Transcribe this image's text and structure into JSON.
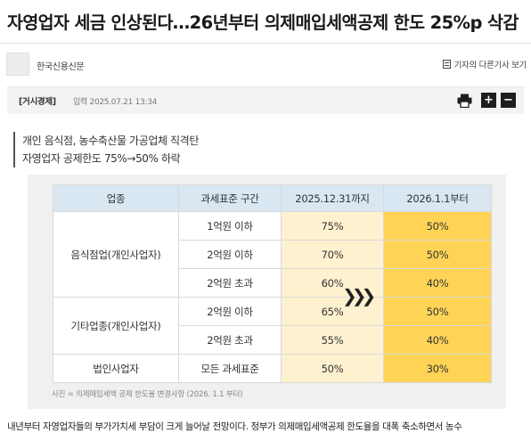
{
  "article": {
    "headline": "자영업자 세금 인상된다…26년부터 의제매입세액공제 한도 25%p 삭감",
    "press_name": "한국신용신문",
    "other_articles_label": "기자의 다른기사 보기",
    "section": "[거시경제]",
    "date": "입력 2025.07.21 13:34",
    "summary_lines": [
      "개인 음식점, 농수축산물 가공업체 직격탄",
      "자영업자 공제한도 75%→50% 하락"
    ],
    "body_first_line": "내년부터 자영업자들의 부가가치세 부담이 크게 늘어날 전망이다. 정부가 의제매입세액공제 한도율을 대폭 축소하면서 농수"
  },
  "toolbar": {
    "print_icon": "printer-icon",
    "zoom_in": "+",
    "zoom_out": "−"
  },
  "figure": {
    "headers": [
      "업종",
      "과세표준 구간",
      "2025.12.31까지",
      "2026.1.1부터"
    ],
    "groups": [
      "음식점업(개인사업자)",
      "기타업종(개인사업자)",
      "법인사업자"
    ],
    "rows": [
      {
        "bracket": "1억원 이하",
        "until_2025": "75%",
        "from_2026": "50%"
      },
      {
        "bracket": "2억원 이하",
        "until_2025": "70%",
        "from_2026": "50%"
      },
      {
        "bracket": "2억원 초과",
        "until_2025": "60%",
        "from_2026": "40%"
      },
      {
        "bracket": "2억원 이하",
        "until_2025": "65%",
        "from_2026": "50%"
      },
      {
        "bracket": "2억원 초과",
        "until_2025": "55%",
        "from_2026": "40%"
      },
      {
        "bracket": "모든 과세표준",
        "until_2025": "50%",
        "from_2026": "30%"
      }
    ],
    "arrow_glyph": "❯❯❯",
    "caption": "사진 = 의제매입세액 공제 한도율 변경사항 (2026. 1.1 부터)",
    "colors": {
      "header_bg": "#d8e7f2",
      "old_rate_bg": "#fef1cf",
      "new_rate_bg": "#ffd456"
    }
  }
}
